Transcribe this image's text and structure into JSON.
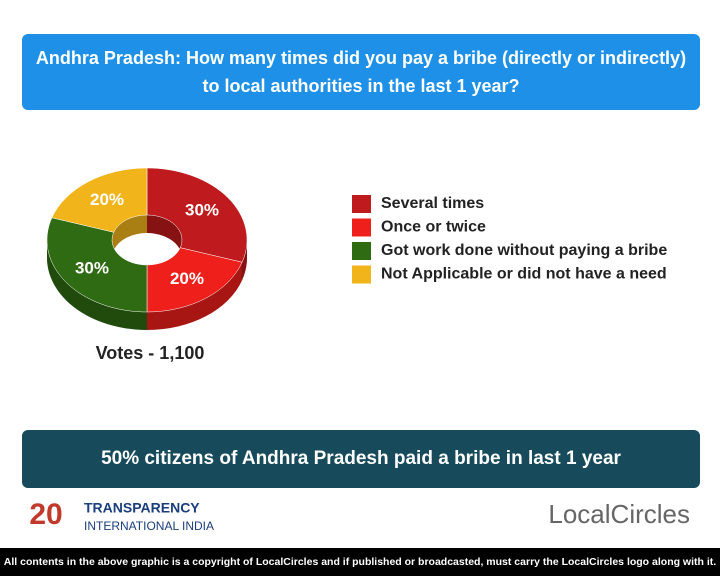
{
  "header": {
    "title_lines": [
      "Andhra Pradesh: How many times did you pay a bribe (directly or indirectly)",
      "to local authorities in the last 1 year?"
    ]
  },
  "chart_data": {
    "type": "pie",
    "categories": [
      "Several times",
      "Once or twice",
      "Got work done without paying a bribe",
      "Not Applicable or did not have a need"
    ],
    "values": [
      30,
      20,
      30,
      20
    ],
    "value_labels": [
      "30%",
      "20%",
      "30%",
      "20%"
    ],
    "colors": [
      "#bf1a1d",
      "#ef1f1b",
      "#2e6b12",
      "#f1b51b"
    ],
    "legend": "right"
  },
  "votes": "Votes - 1,100",
  "banner": "50% citizens of Andhra Pradesh paid a bribe in last 1 year",
  "logos": {
    "ti_badge": "20",
    "ti_line1": "TRANSPARENCY",
    "ti_line2": "INTERNATIONAL INDIA",
    "localcircles": "LocalCircles"
  },
  "footer": "All contents in the above graphic is a copyright of LocalCircles and if published or broadcasted, must carry the LocalCircles logo along with it."
}
